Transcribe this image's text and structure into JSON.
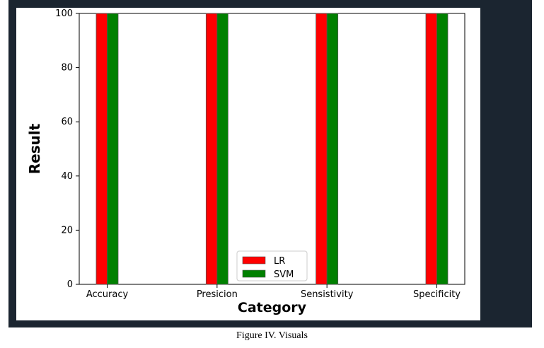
{
  "caption": "Figure IV. Visuals",
  "colors": {
    "frame_bg": "#1b2530",
    "LR": "#ff0000",
    "SVM": "#008000"
  },
  "chart_data": {
    "type": "bar",
    "title": "",
    "xlabel": "Category",
    "ylabel": "Result",
    "categories": [
      "Accuracy",
      "Presicion",
      "Sensistivity",
      "Specificity"
    ],
    "series": [
      {
        "name": "LR",
        "color": "#ff0000",
        "values": [
          100,
          100,
          100,
          100
        ]
      },
      {
        "name": "SVM",
        "color": "#008000",
        "values": [
          100,
          100,
          100,
          100
        ]
      }
    ],
    "ylim": [
      0,
      100
    ],
    "yticks": [
      0,
      20,
      40,
      60,
      80,
      100
    ],
    "grid": false,
    "legend_position": "bottom-center"
  }
}
